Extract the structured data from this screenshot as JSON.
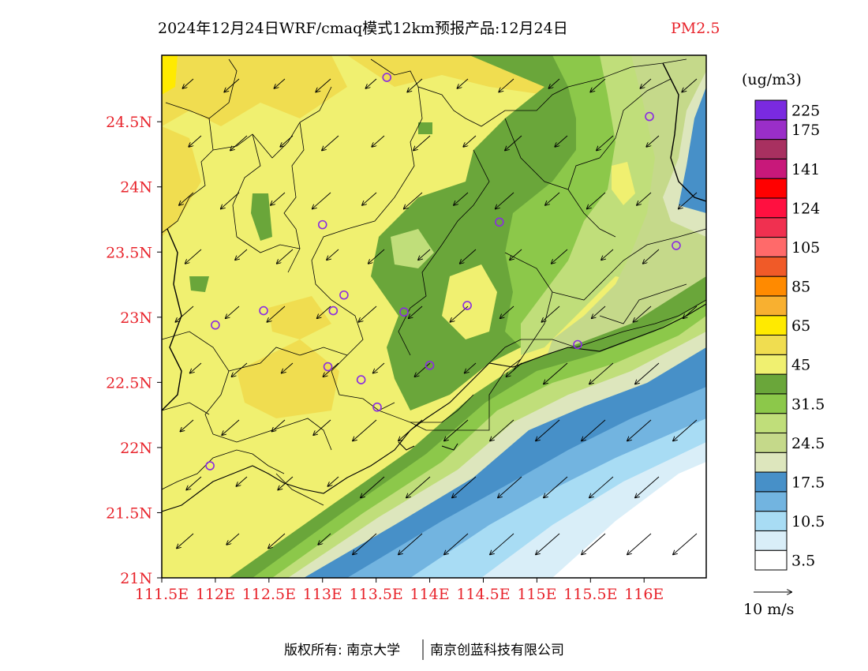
{
  "title": {
    "main": "2024年12月24日WRF/cmaq模式12km预报产品:12月24日",
    "pollutant": "PM2.5"
  },
  "axes": {
    "lat_labels": [
      "24.5N",
      "24N",
      "23.5N",
      "23N",
      "22.5N",
      "22N",
      "21.5N",
      "21N"
    ],
    "lat_values": [
      24.5,
      24,
      23.5,
      23,
      22.5,
      22,
      21.5,
      21
    ],
    "lon_labels": [
      "111.5E",
      "112E",
      "112.5E",
      "113E",
      "113.5E",
      "114E",
      "114.5E",
      "115E",
      "115.5E",
      "116E"
    ],
    "lon_values": [
      111.5,
      112,
      112.5,
      113,
      113.5,
      114,
      114.5,
      115,
      115.5,
      116
    ],
    "lat_range": [
      21,
      25
    ],
    "lon_range": [
      111.5,
      116.6
    ]
  },
  "legend": {
    "unit": "(ug/m3)",
    "colors": [
      "#ffffff",
      "#d9eef8",
      "#a8dcf4",
      "#72b4e0",
      "#4790c8",
      "#dde6bd",
      "#c5d98a",
      "#c0de7a",
      "#8cc84a",
      "#6aa63a",
      "#f0f070",
      "#f0dd50",
      "#ffea00",
      "#f8b030",
      "#ff8a00",
      "#f05a28",
      "#ff6a6a",
      "#f03050",
      "#ff1040",
      "#ff0000",
      "#c8187a",
      "#a83060",
      "#9a2ec8",
      "#7a2ae0"
    ],
    "labels": [
      "3.5",
      "10.5",
      "17.5",
      "24.5",
      "31.5",
      "45",
      "65",
      "85",
      "105",
      "124",
      "141",
      "175",
      "225"
    ],
    "label_step_index": [
      0,
      2,
      4,
      6,
      8,
      10,
      12,
      14,
      16,
      18,
      20,
      22,
      23
    ]
  },
  "wind": {
    "scale_label": "10 m/s",
    "direction": "northeasterly"
  },
  "stations_count": 18,
  "footer": {
    "left": "版权所有: 南京大学",
    "right": "南京创蓝科技有限公司"
  }
}
